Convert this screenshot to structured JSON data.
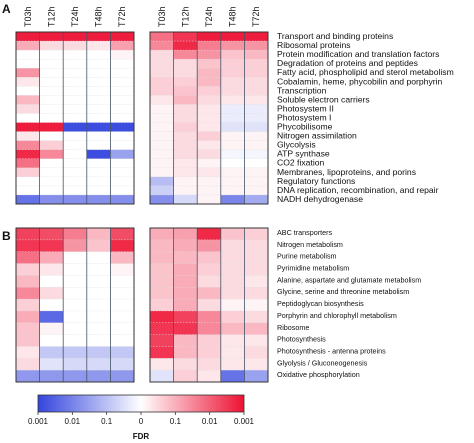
{
  "chart_data": {
    "type": "heatmap",
    "time_points": [
      "T03h",
      "T12h",
      "T24h",
      "T48h",
      "T72h"
    ],
    "panels": [
      {
        "letter": "A",
        "rows": [
          "Transport and binding proteins",
          "Ribosomal proteins",
          "Protein modification and translation factors",
          "Degradation of proteins and peptides",
          "Fatty acid, phospholipid and sterol metabolism",
          "Cobalamin, heme, phycobilin and porphyrin",
          "Transcription",
          "Soluble electron carriers",
          "Photosystem II",
          "Photosystem I",
          "Phycobilisome",
          "Nitrogen assimilation",
          "Glycolysis",
          "ATP synthase",
          "CO2 fixation",
          "Membranes, lipoproteins, and porins",
          "Regulatory functions",
          "DNA replication, recombination, and repair",
          "NADH dehydrogenase"
        ],
        "left_values": [
          [
            0.95,
            0.95,
            0.95,
            0.95,
            0.95
          ],
          [
            0.35,
            0.15,
            0.15,
            0.1,
            0.4
          ],
          [
            0,
            0,
            0,
            0,
            0.05
          ],
          [
            0,
            0,
            0,
            0,
            0
          ],
          [
            0.45,
            0,
            0,
            0,
            0
          ],
          [
            0.1,
            0,
            0,
            0,
            0
          ],
          [
            0,
            0,
            0,
            0,
            0
          ],
          [
            0.3,
            0,
            0,
            0,
            0
          ],
          [
            0.15,
            0,
            0,
            0,
            0
          ],
          [
            0,
            0,
            0,
            0,
            0
          ],
          [
            0.95,
            0.95,
            -0.95,
            -0.95,
            -0.95
          ],
          [
            0.1,
            0,
            0,
            0,
            0
          ],
          [
            0.5,
            0.2,
            0,
            0,
            0
          ],
          [
            0.9,
            0.5,
            0,
            -0.95,
            -0.5
          ],
          [
            0.6,
            0,
            0,
            0,
            0
          ],
          [
            0.2,
            0,
            0,
            0,
            0
          ],
          [
            0,
            0,
            0,
            0,
            0
          ],
          [
            0,
            0,
            0,
            0,
            0
          ],
          [
            -0.75,
            -0.6,
            -0.6,
            -0.6,
            -0.6
          ]
        ],
        "right_values": [
          [
            0.6,
            0.85,
            0.95,
            0.95,
            0.95
          ],
          [
            0.5,
            0.9,
            0.55,
            0.45,
            0.45
          ],
          [
            0.15,
            0.5,
            0.45,
            0.25,
            0.3
          ],
          [
            0.15,
            0.15,
            0.25,
            0.2,
            0.2
          ],
          [
            0.15,
            0.15,
            0.3,
            0.2,
            0.2
          ],
          [
            0.2,
            0.2,
            0.3,
            0.15,
            0.15
          ],
          [
            0.2,
            0.25,
            0.2,
            0.15,
            0.15
          ],
          [
            0.1,
            0.3,
            0.15,
            0.1,
            0.1
          ],
          [
            0.05,
            0.15,
            0.1,
            -0.1,
            -0.1
          ],
          [
            0.05,
            0.15,
            0.1,
            -0.1,
            -0.1
          ],
          [
            0.05,
            0.2,
            0.1,
            -0.15,
            -0.15
          ],
          [
            0.05,
            0.15,
            0.2,
            0.05,
            0.05
          ],
          [
            0.05,
            0.15,
            0.1,
            0.05,
            0.05
          ],
          [
            0.05,
            0.15,
            0.15,
            -0.05,
            -0.05
          ],
          [
            0.05,
            0.1,
            0.05,
            0,
            0
          ],
          [
            0.05,
            0.1,
            0.1,
            0.05,
            0.05
          ],
          [
            -0.35,
            0.05,
            0.05,
            0.05,
            0.05
          ],
          [
            -0.25,
            0.05,
            0.05,
            0.05,
            0.05
          ],
          [
            -0.6,
            -0.2,
            0.05,
            -0.65,
            -0.45
          ]
        ]
      },
      {
        "letter": "B",
        "rows": [
          "ABC transporters",
          "Nitrogen metabolism",
          "Purine metabolism",
          "Pyrimidine metabolism",
          "Alanine, aspartate and glutamate metabolism",
          "Glycine, serine and threonine metabolism",
          "Peptidoglycan biosynthesis",
          "Porphyrin and chlorophyll metabolism",
          "Ribosome",
          "Photosynthesis",
          "Photosynthesis - antenna proteins",
          "Glyolysis / Gluconeogenesis",
          "Oxidative phosphorylation"
        ],
        "left_values": [
          [
            0.8,
            0.75,
            0.55,
            0.3,
            0.75
          ],
          [
            0.85,
            0.85,
            0.45,
            0.25,
            0.9
          ],
          [
            0.6,
            0.35,
            0,
            0,
            0.3
          ],
          [
            0.2,
            0.1,
            0,
            0,
            0.05
          ],
          [
            0.3,
            0,
            0,
            0,
            0
          ],
          [
            0.5,
            0.15,
            0,
            0,
            0
          ],
          [
            0.2,
            0,
            0,
            0,
            0
          ],
          [
            0.35,
            -0.8,
            0,
            0,
            0
          ],
          [
            0.25,
            0.05,
            0,
            0,
            0
          ],
          [
            0.25,
            0,
            0,
            0,
            0
          ],
          [
            0.1,
            -0.3,
            -0.3,
            -0.3,
            -0.3
          ],
          [
            0.15,
            -0.15,
            -0.2,
            -0.2,
            -0.2
          ],
          [
            -0.55,
            -0.55,
            -0.55,
            -0.55,
            -0.55
          ]
        ],
        "right_values": [
          [
            0.35,
            0.4,
            0.9,
            0.25,
            0.2
          ],
          [
            0.3,
            0.35,
            0.45,
            0.15,
            0.15
          ],
          [
            0.3,
            0.3,
            0.25,
            0.15,
            0.15
          ],
          [
            0.25,
            0.35,
            0.2,
            0.15,
            0.15
          ],
          [
            0.25,
            0.35,
            0.15,
            0.15,
            0.1
          ],
          [
            0.25,
            0.35,
            0.3,
            0.15,
            0.15
          ],
          [
            0.2,
            0.35,
            0.15,
            0.05,
            0.05
          ],
          [
            0.9,
            0.8,
            0.5,
            0.2,
            0.15
          ],
          [
            0.85,
            0.85,
            0.5,
            0.3,
            0.3
          ],
          [
            0.8,
            0.3,
            0.2,
            0.1,
            0.1
          ],
          [
            0.85,
            0.3,
            0.2,
            0.1,
            0.15
          ],
          [
            0.1,
            0.15,
            0.15,
            0.1,
            0.1
          ],
          [
            -0.15,
            0.2,
            0.1,
            -0.75,
            -0.5
          ]
        ]
      }
    ],
    "colorbar": {
      "title": "FDR",
      "tick_labels": [
        "0.001",
        "0.01",
        "0.1",
        "0",
        "0.1",
        "0.01",
        "0.001"
      ],
      "scale_min": -1,
      "scale_max": 1,
      "low_color": "#3344dd",
      "mid_color": "#ffffff",
      "high_color": "#ee1133"
    }
  }
}
